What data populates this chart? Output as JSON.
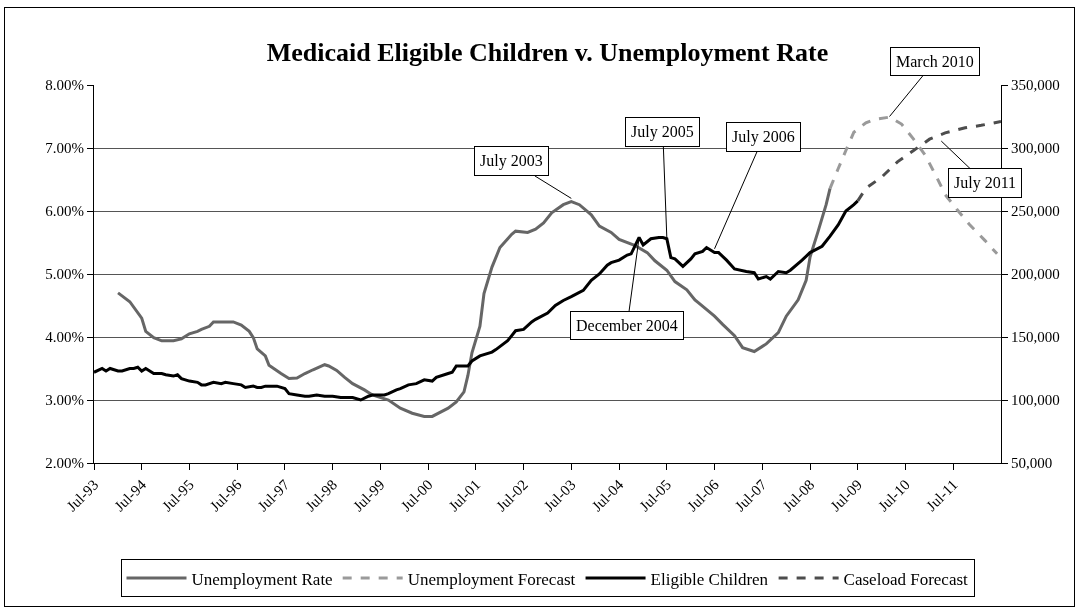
{
  "chart_data": {
    "type": "line",
    "title": "Medicaid Eligible Children v. Unemployment Rate",
    "xlim": [
      "1993-07",
      "2012-07"
    ],
    "xticks": [
      {
        "value": "1993-07",
        "label": "Jul-93"
      },
      {
        "value": "1994-07",
        "label": "Jul-94"
      },
      {
        "value": "1995-07",
        "label": "Jul-95"
      },
      {
        "value": "1996-07",
        "label": "Jul-96"
      },
      {
        "value": "1997-07",
        "label": "Jul-97"
      },
      {
        "value": "1998-07",
        "label": "Jul-98"
      },
      {
        "value": "1999-07",
        "label": "Jul-99"
      },
      {
        "value": "2000-07",
        "label": "Jul-00"
      },
      {
        "value": "2001-07",
        "label": "Jul-01"
      },
      {
        "value": "2002-07",
        "label": "Jul-02"
      },
      {
        "value": "2003-07",
        "label": "Jul-03"
      },
      {
        "value": "2004-07",
        "label": "Jul-04"
      },
      {
        "value": "2005-07",
        "label": "Jul-05"
      },
      {
        "value": "2006-07",
        "label": "Jul-06"
      },
      {
        "value": "2007-07",
        "label": "Jul-07"
      },
      {
        "value": "2008-07",
        "label": "Jul-08"
      },
      {
        "value": "2009-07",
        "label": "Jul-09"
      },
      {
        "value": "2010-07",
        "label": "Jul-10"
      },
      {
        "value": "2011-07",
        "label": "Jul-11"
      }
    ],
    "ylim": [
      2,
      8
    ],
    "yticks": [
      {
        "value": 2,
        "label": "2.00%"
      },
      {
        "value": 3,
        "label": "3.00%"
      },
      {
        "value": 4,
        "label": "4.00%"
      },
      {
        "value": 5,
        "label": "5.00%"
      },
      {
        "value": 6,
        "label": "6.00%"
      },
      {
        "value": 7,
        "label": "7.00%"
      },
      {
        "value": 8,
        "label": "8.00%"
      }
    ],
    "y2lim": [
      50000,
      350000
    ],
    "y2ticks": [
      {
        "value": 50000,
        "label": "50,000"
      },
      {
        "value": 100000,
        "label": "100,000"
      },
      {
        "value": 150000,
        "label": "150,000"
      },
      {
        "value": 200000,
        "label": "200,000"
      },
      {
        "value": 250000,
        "label": "250,000"
      },
      {
        "value": 300000,
        "label": "300,000"
      },
      {
        "value": 350000,
        "label": "350,000"
      }
    ],
    "grid": "y",
    "legend": "bottom",
    "line_style": "solid",
    "series": [
      {
        "name": "Unemployment Rate",
        "color": "#666666",
        "x": [
          "1994-01",
          "1994-04",
          "1994-07",
          "1994-08",
          "1994-10",
          "1994-12",
          "1995-03",
          "1995-05",
          "1995-07",
          "1995-09",
          "1995-10",
          "1995-12",
          "1996-01",
          "1996-06",
          "1996-08",
          "1996-10",
          "1996-11",
          "1996-12",
          "1997-02",
          "1997-03",
          "1997-06",
          "1997-08",
          "1997-10",
          "1997-12",
          "1998-02",
          "1998-05",
          "1998-06",
          "1998-08",
          "1998-10",
          "1998-12",
          "1999-03",
          "1999-05",
          "1999-09",
          "1999-12",
          "2000-03",
          "2000-06",
          "2000-08",
          "2000-12",
          "2001-02",
          "2001-04",
          "2001-05",
          "2001-06",
          "2001-08",
          "2001-09",
          "2001-11",
          "2002-01",
          "2002-04",
          "2002-05",
          "2002-08",
          "2002-10",
          "2002-12",
          "2003-02",
          "2003-05",
          "2003-07",
          "2003-09",
          "2003-12",
          "2004-02",
          "2004-05",
          "2004-07",
          "2004-11",
          "2005-02",
          "2005-04",
          "2005-07",
          "2005-09",
          "2005-12",
          "2006-02",
          "2006-03",
          "2006-07",
          "2006-09",
          "2006-12",
          "2007-02",
          "2007-05",
          "2007-08",
          "2007-11",
          "2008-01",
          "2008-04",
          "2008-06",
          "2008-07",
          "2008-09",
          "2008-11",
          "2008-12"
        ],
        "values": [
          4.7,
          4.56,
          4.3,
          4.09,
          3.99,
          3.94,
          3.94,
          3.97,
          4.05,
          4.09,
          4.12,
          4.17,
          4.24,
          4.24,
          4.19,
          4.09,
          3.99,
          3.81,
          3.7,
          3.55,
          3.42,
          3.34,
          3.35,
          3.42,
          3.48,
          3.56,
          3.54,
          3.47,
          3.36,
          3.26,
          3.16,
          3.08,
          3.0,
          2.87,
          2.79,
          2.74,
          2.74,
          2.87,
          2.97,
          3.13,
          3.39,
          3.75,
          4.17,
          4.69,
          5.11,
          5.42,
          5.63,
          5.68,
          5.66,
          5.71,
          5.81,
          5.97,
          6.1,
          6.15,
          6.1,
          5.94,
          5.76,
          5.66,
          5.55,
          5.45,
          5.34,
          5.21,
          5.06,
          4.88,
          4.75,
          4.59,
          4.54,
          4.33,
          4.2,
          4.02,
          3.83,
          3.77,
          3.89,
          4.07,
          4.33,
          4.59,
          4.9,
          5.27,
          5.68,
          6.1,
          6.36
        ]
      },
      {
        "name": "Unemployment Forecast",
        "color": "#9a9a9a",
        "line_style": "dashed",
        "x": [
          "2008-12",
          "2009-02",
          "2009-04",
          "2009-06",
          "2009-09",
          "2009-11",
          "2010-03",
          "2010-06",
          "2010-09",
          "2010-12",
          "2011-03",
          "2011-05",
          "2011-08",
          "2011-11",
          "2012-03",
          "2012-06"
        ],
        "values": [
          6.36,
          6.67,
          6.96,
          7.25,
          7.4,
          7.45,
          7.49,
          7.38,
          7.14,
          6.88,
          6.52,
          6.26,
          6.02,
          5.79,
          5.53,
          5.32
        ]
      },
      {
        "name": "Eligible Children",
        "color": "#000000",
        "axis": "y2",
        "x": [
          "1993-07",
          "1993-09",
          "1993-10",
          "1993-11",
          "1994-01",
          "1994-02",
          "1994-04",
          "1994-05",
          "1994-06",
          "1994-07",
          "1994-08",
          "1994-10",
          "1994-12",
          "1995-01",
          "1995-03",
          "1995-04",
          "1995-05",
          "1995-07",
          "1995-09",
          "1995-10",
          "1995-11",
          "1996-01",
          "1996-03",
          "1996-04",
          "1996-06",
          "1996-08",
          "1996-09",
          "1996-11",
          "1996-12",
          "1997-01",
          "1997-02",
          "1997-05",
          "1997-07",
          "1997-08",
          "1997-10",
          "1997-12",
          "1998-01",
          "1998-03",
          "1998-05",
          "1998-07",
          "1998-09",
          "1998-12",
          "1999-02",
          "1999-04",
          "1999-05",
          "1999-08",
          "1999-09",
          "1999-11",
          "1999-12",
          "2000-02",
          "2000-04",
          "2000-06",
          "2000-08",
          "2000-09",
          "2000-12",
          "2001-01",
          "2001-02",
          "2001-05",
          "2001-06",
          "2001-08",
          "2001-11",
          "2001-12",
          "2002-03",
          "2002-05",
          "2002-07",
          "2002-09",
          "2002-10",
          "2003-01",
          "2003-03",
          "2003-05",
          "2003-07",
          "2003-10",
          "2003-12",
          "2004-02",
          "2004-04",
          "2004-05",
          "2004-07",
          "2004-09",
          "2004-10",
          "2004-12",
          "2005-01",
          "2005-03",
          "2005-05",
          "2005-06",
          "2005-07",
          "2005-08",
          "2005-09",
          "2005-11",
          "2006-01",
          "2006-02",
          "2006-04",
          "2006-05",
          "2006-07",
          "2006-08",
          "2006-10",
          "2006-12",
          "2007-03",
          "2007-05",
          "2007-06",
          "2007-08",
          "2007-09",
          "2007-11",
          "2008-01",
          "2008-02",
          "2008-05",
          "2008-07",
          "2008-10",
          "2008-12",
          "2009-02",
          "2009-04",
          "2009-06",
          "2009-07"
        ],
        "values": [
          122000,
          125000,
          123000,
          125000,
          123000,
          123000,
          125000,
          125000,
          126000,
          123000,
          125000,
          121000,
          121000,
          120000,
          119000,
          120000,
          117000,
          115000,
          114000,
          112000,
          112000,
          114000,
          113000,
          114000,
          113000,
          112000,
          110000,
          111000,
          110000,
          110000,
          111000,
          111000,
          109000,
          105000,
          104000,
          103000,
          103000,
          104000,
          103000,
          103000,
          102000,
          102000,
          100000,
          103000,
          104000,
          104000,
          105000,
          108000,
          109000,
          112000,
          113000,
          116000,
          115000,
          118000,
          121000,
          122000,
          127000,
          127000,
          131000,
          135000,
          138000,
          140000,
          147000,
          155000,
          156000,
          162000,
          164000,
          169000,
          175000,
          179000,
          182000,
          187000,
          195000,
          200000,
          207000,
          209000,
          211000,
          215000,
          216000,
          229000,
          223000,
          228000,
          229000,
          229000,
          228000,
          213000,
          212000,
          206000,
          212000,
          216000,
          218000,
          221000,
          217000,
          217000,
          211000,
          204000,
          202000,
          201000,
          196000,
          198000,
          196000,
          202000,
          201000,
          203000,
          211000,
          217000,
          222000,
          230000,
          239000,
          250000,
          255000,
          258000
        ]
      },
      {
        "name": "Caseload Forecast",
        "color": "#4d4d4d",
        "axis": "y2",
        "line_style": "dashed",
        "x": [
          "2009-07",
          "2009-09",
          "2010-01",
          "2010-05",
          "2010-09",
          "2011-01",
          "2011-05",
          "2011-10",
          "2012-02",
          "2012-07"
        ],
        "values": [
          258000,
          268000,
          277000,
          289000,
          298000,
          307000,
          312000,
          316000,
          318000,
          321000
        ]
      }
    ],
    "annotations": [
      {
        "text": "July 2003",
        "x": "2003-07",
        "y": 6.2
      },
      {
        "text": "December 2004",
        "x": "2004-12",
        "y": 5.58
      },
      {
        "text": "July 2005",
        "x": "2005-07",
        "y": 5.58
      },
      {
        "text": "July 2006",
        "x": "2006-07",
        "y": 5.4
      },
      {
        "text": "March 2010",
        "x": "2010-03",
        "y": 7.5
      },
      {
        "text": "July 2011",
        "x": "2011-04",
        "y": 7.11
      }
    ]
  }
}
